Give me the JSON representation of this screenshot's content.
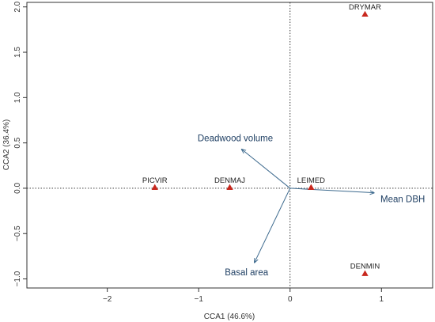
{
  "chart_data": {
    "type": "scatter",
    "title": "",
    "xlabel": "CCA1 (46.6%)",
    "ylabel": "CCA2 (36.4%)",
    "xlim": [
      -2.88,
      1.56
    ],
    "ylim": [
      -1.1,
      2.05
    ],
    "xticks": [
      -2,
      -1,
      0,
      1
    ],
    "xtick_labels": [
      "−2",
      "−1",
      "0",
      "1"
    ],
    "yticks": [
      -1.0,
      -0.5,
      0.0,
      0.5,
      1.0,
      1.5,
      2.0
    ],
    "ytick_labels": [
      "−1.0",
      "−0.5",
      "0.0",
      "0.5",
      "1.0",
      "1.5",
      "2.0"
    ],
    "reference_lines": {
      "x": 0,
      "y": 0,
      "style": "dotted"
    },
    "grid": false,
    "species": [
      {
        "label": "DRYMAR",
        "x": 0.82,
        "y": 1.92
      },
      {
        "label": "PICVIR",
        "x": -1.48,
        "y": 0.01
      },
      {
        "label": "DENMAJ",
        "x": -0.66,
        "y": 0.01
      },
      {
        "label": "LEIMED",
        "x": 0.23,
        "y": 0.01
      },
      {
        "label": "DENMIN",
        "x": 0.82,
        "y": -0.94
      }
    ],
    "vectors": [
      {
        "label": "Deadwood volume",
        "x": -0.53,
        "y": 0.43
      },
      {
        "label": "Mean DBH",
        "x": 0.92,
        "y": -0.05
      },
      {
        "label": "Basal area",
        "x": -0.39,
        "y": -0.82
      }
    ],
    "colors": {
      "species_marker": "#c8281e",
      "vector": "#3d6a8e",
      "vector_label": "#1f3f63",
      "axis": "#333333",
      "reference_line": "#222222"
    }
  }
}
